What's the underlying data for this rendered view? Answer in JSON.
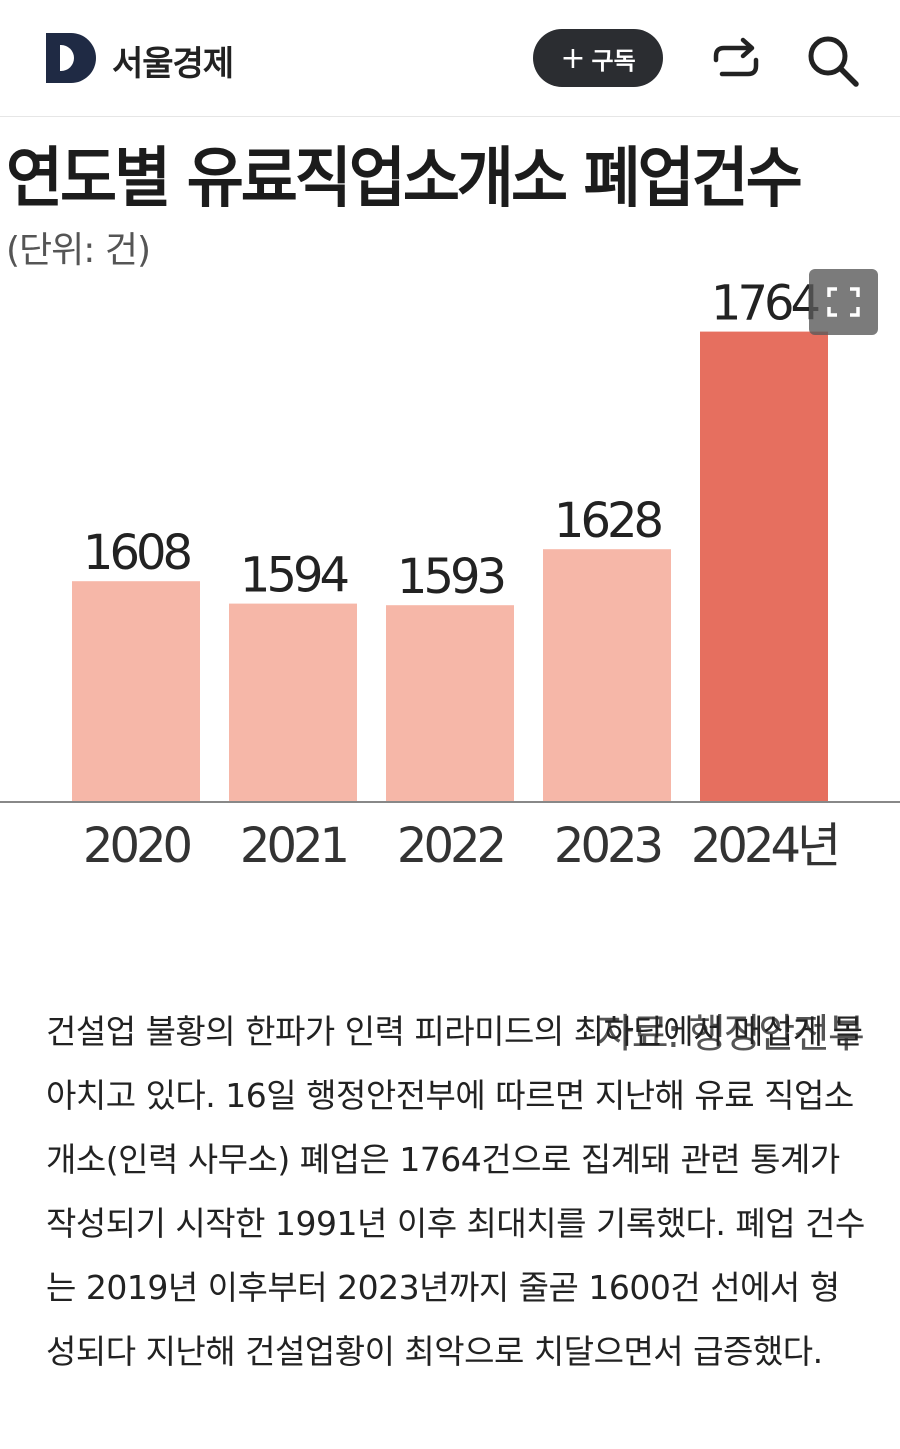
{
  "header": {
    "logo_letter": "D",
    "logo_text": "서울경제",
    "subscribe_plus": "+",
    "subscribe_label": "구독",
    "share_icon": "share-icon",
    "search_icon": "search-icon"
  },
  "chart_data": {
    "type": "bar",
    "title": "연도별 유료직업소개소 폐업건수",
    "unit": "(단위: 건)",
    "categories": [
      "2020",
      "2021",
      "2022",
      "2023",
      "2024년"
    ],
    "values": [
      1608,
      1594,
      1593,
      1628,
      1764
    ],
    "colors": [
      "#f6b7a8",
      "#f6b7a8",
      "#f6b7a8",
      "#f6b7a8",
      "#e66f5f"
    ],
    "axis_color": "#888888",
    "source": "자료: 행정안전부",
    "xlabel": "",
    "ylabel": ""
  },
  "expand_icon": "expand-icon",
  "article": {
    "body": "건설업 불황의 한파가 인력 피라미드의 최하단에서 매섭게 몰아치고 있다. 16일 행정안전부에 따르면 지난해 유료 직업소개소(인력 사무소) 폐업은 1764건으로 집계돼 관련 통계가 작성되기 시작한 1991년 이후 최대치를 기록했다. 폐업 건수는 2019년 이후부터 2023년까지 줄곧 1600건 선에서 형성되다 지난해 건설업황이 최악으로 치달으면서 급증했다."
  }
}
